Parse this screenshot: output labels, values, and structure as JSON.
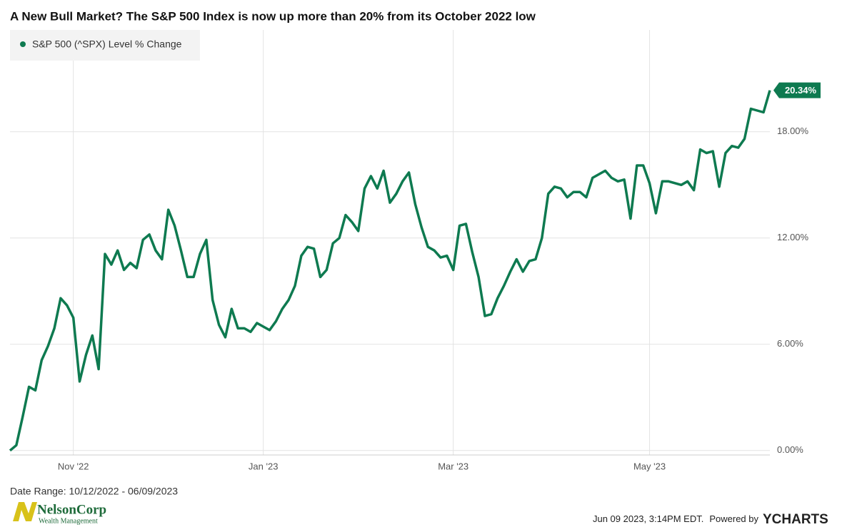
{
  "chart_data": {
    "type": "line",
    "title": "A New Bull Market? The S&P 500 Index is now up more than 20% from its October 2022 low",
    "categories": [
      null,
      null,
      null,
      null,
      null,
      null,
      null,
      null,
      null,
      null,
      "Nov '22",
      null,
      null,
      null,
      null,
      null,
      null,
      null,
      null,
      null,
      null,
      null,
      null,
      null,
      null,
      null,
      null,
      null,
      null,
      null,
      null,
      null,
      null,
      null,
      null,
      null,
      null,
      null,
      null,
      null,
      "Jan '23",
      null,
      null,
      null,
      null,
      null,
      null,
      null,
      null,
      null,
      null,
      null,
      null,
      null,
      null,
      null,
      null,
      null,
      null,
      null,
      null,
      null,
      null,
      null,
      null,
      null,
      null,
      null,
      null,
      null,
      "Mar '23",
      null,
      null,
      null,
      null,
      null,
      null,
      null,
      null,
      null,
      null,
      null,
      null,
      null,
      null,
      null,
      null,
      null,
      null,
      null,
      null,
      null,
      null,
      null,
      null,
      null,
      null,
      null,
      null,
      null,
      null,
      "May '23",
      null,
      null,
      null,
      null,
      null,
      null,
      null,
      null,
      null,
      null,
      null,
      null,
      null,
      null,
      null,
      null,
      null,
      null,
      null
    ],
    "series": [
      {
        "name": "S&P 500 (^SPX) Level % Change",
        "color": "#0e7a50",
        "values": [
          0,
          0.3,
          1.9,
          3.6,
          3.4,
          5.1,
          5.9,
          6.9,
          8.6,
          8.2,
          7.5,
          3.9,
          5.4,
          6.5,
          4.6,
          11.1,
          10.5,
          11.3,
          10.2,
          10.6,
          10.3,
          11.9,
          12.2,
          11.3,
          10.8,
          13.6,
          12.7,
          11.3,
          9.8,
          9.8,
          11.1,
          11.9,
          8.5,
          7.1,
          6.4,
          8.0,
          6.9,
          6.9,
          6.7,
          7.2,
          7.0,
          6.8,
          7.3,
          8.0,
          8.5,
          9.3,
          11.0,
          11.5,
          11.4,
          9.8,
          10.2,
          11.7,
          12.0,
          13.3,
          12.9,
          12.4,
          14.8,
          15.5,
          14.8,
          15.8,
          14.0,
          14.5,
          15.2,
          15.7,
          13.9,
          12.6,
          11.5,
          11.3,
          10.9,
          11.0,
          10.2,
          12.7,
          12.8,
          11.2,
          9.8,
          7.6,
          7.7,
          8.6,
          9.3,
          10.1,
          10.8,
          10.1,
          10.7,
          10.8,
          12.0,
          14.5,
          14.9,
          14.8,
          14.3,
          14.6,
          14.6,
          14.3,
          15.4,
          15.6,
          15.8,
          15.4,
          15.2,
          15.3,
          13.1,
          16.1,
          16.1,
          15.1,
          13.4,
          15.2,
          15.2,
          15.1,
          15.0,
          15.2,
          14.7,
          17.0,
          16.8,
          16.9,
          14.9,
          16.8,
          17.2,
          17.1,
          17.6,
          19.3,
          19.2,
          19.1,
          20.34
        ],
        "value_labels": [
          null,
          null,
          null,
          null,
          null,
          null,
          null,
          null,
          null,
          null,
          null,
          null,
          null,
          null,
          null,
          null,
          null,
          null,
          null,
          null,
          null,
          null,
          null,
          null,
          null,
          null,
          null,
          null,
          null,
          null,
          null,
          null,
          null,
          null,
          null,
          null,
          null,
          null,
          null,
          null,
          null,
          null,
          null,
          null,
          null,
          null,
          null,
          null,
          null,
          null,
          null,
          null,
          null,
          null,
          null,
          null,
          null,
          null,
          null,
          null,
          null,
          null,
          null,
          null,
          null,
          null,
          null,
          null,
          null,
          null,
          null,
          null,
          null,
          null,
          null,
          null,
          null,
          null,
          null,
          null,
          null,
          null,
          null,
          null,
          null,
          null,
          null,
          null,
          null,
          null,
          null,
          null,
          null,
          null,
          null,
          null,
          null,
          null,
          null,
          null,
          null,
          null,
          null,
          null,
          null,
          null,
          null,
          null,
          null,
          null,
          null,
          null,
          null,
          null,
          null,
          null,
          null,
          null,
          null,
          null,
          "20.34%"
        ]
      }
    ],
    "ylim": [
      -0.25,
      23.75
    ],
    "yticks": [
      {
        "value": 0,
        "label": "0.00%"
      },
      {
        "value": 6,
        "label": "6.00%"
      },
      {
        "value": 12,
        "label": "12.00%"
      },
      {
        "value": 18,
        "label": "18.00%"
      }
    ],
    "grid": true,
    "legend": "top-left"
  },
  "footer": {
    "date_range": "Date Range: 10/12/2022 - 06/09/2023",
    "logo_name": "NelsonCorp",
    "logo_sub": "Wealth Management",
    "timestamp": "Jun 09 2023, 3:14PM EDT.",
    "powered_by": "Powered by",
    "brand": "YCHARTS"
  }
}
